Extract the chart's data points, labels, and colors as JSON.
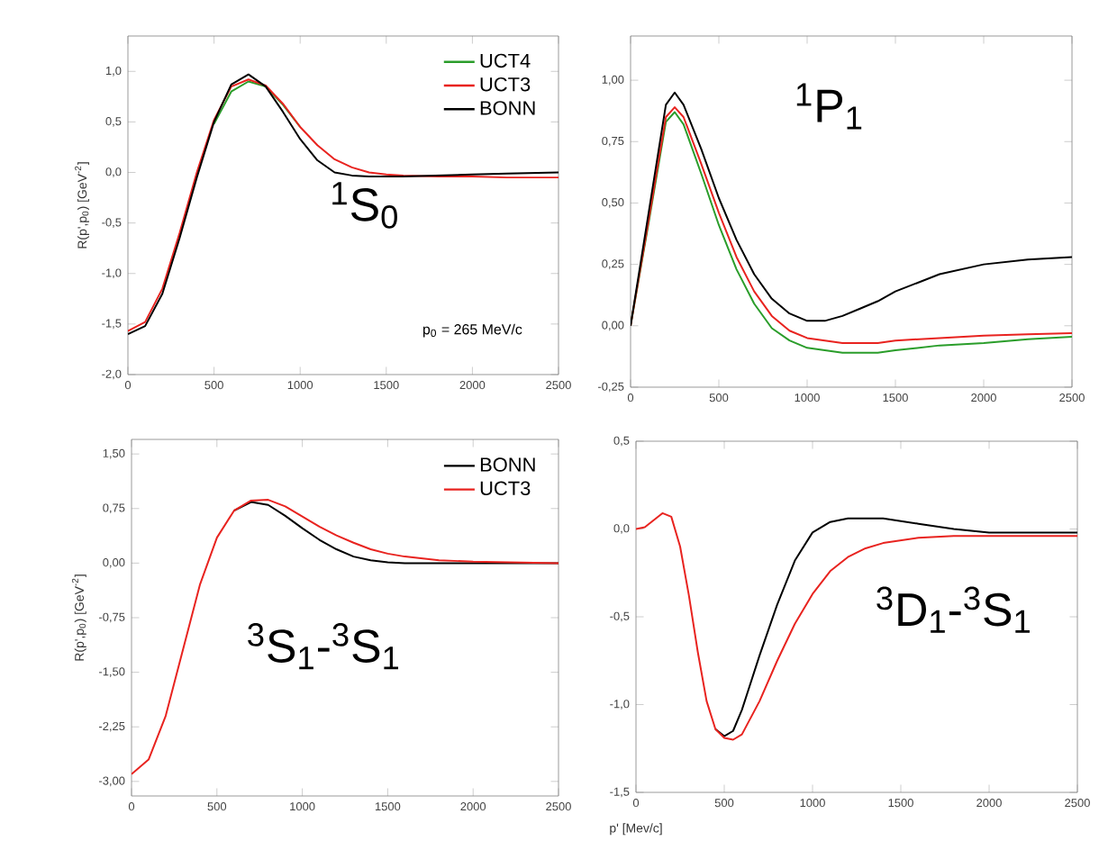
{
  "chart_data": [
    {
      "type": "line",
      "ylabel": "R(p',p$_{0}$) [GeV$^{-2}$]",
      "annotations": [
        "$^{1}$S$_{0}$",
        "p$_{0}$ = 265 MeV/c"
      ],
      "legend": "top right",
      "line_style": "solid",
      "xlim": [
        0,
        2500
      ],
      "xticks": [
        0,
        500,
        1000,
        1500,
        2000,
        2500
      ],
      "ylim": [
        -2.0,
        1.35
      ],
      "yticks": [
        {
          "value": -2.0,
          "label": "-2,0"
        },
        {
          "value": -1.5,
          "label": "-1,5"
        },
        {
          "value": -1.0,
          "label": "-1,0"
        },
        {
          "value": -0.5,
          "label": "-0,5"
        },
        {
          "value": 0.0,
          "label": "0,0"
        },
        {
          "value": 0.5,
          "label": "0,5"
        },
        {
          "value": 1.0,
          "label": "1,0"
        }
      ],
      "x": [
        0,
        100,
        200,
        300,
        400,
        500,
        600,
        700,
        800,
        900,
        1000,
        1100,
        1200,
        1300,
        1400,
        1500,
        1600,
        1800,
        2000,
        2200,
        2500
      ],
      "series": [
        {
          "name": "UCT4",
          "color": "#2a9d2a",
          "values": [
            null,
            null,
            null,
            null,
            null,
            0.48,
            0.8,
            0.9,
            0.85,
            0.67,
            0.45,
            null,
            null,
            null,
            null,
            null,
            null,
            null,
            null,
            null,
            null
          ]
        },
        {
          "name": "UCT3",
          "color": "#e8231f",
          "values": [
            -1.57,
            -1.48,
            -1.15,
            -0.6,
            0.0,
            0.52,
            0.85,
            0.92,
            0.86,
            0.68,
            0.45,
            0.27,
            0.13,
            0.05,
            0.0,
            -0.02,
            -0.03,
            -0.04,
            -0.04,
            -0.05,
            -0.05
          ]
        },
        {
          "name": "BONN",
          "color": "#000000",
          "values": [
            -1.6,
            -1.52,
            -1.2,
            -0.65,
            -0.05,
            0.5,
            0.87,
            0.97,
            0.85,
            0.6,
            0.33,
            0.12,
            0.0,
            -0.03,
            -0.04,
            -0.04,
            -0.04,
            -0.03,
            -0.02,
            -0.01,
            0.0
          ]
        }
      ]
    },
    {
      "type": "line",
      "annotations": [
        "$^{1}$P$_{1}$"
      ],
      "line_style": "solid",
      "xlim": [
        0,
        2500
      ],
      "xticks": [
        0,
        500,
        1000,
        1500,
        2000,
        2500
      ],
      "ylim": [
        -0.25,
        1.18
      ],
      "yticks": [
        {
          "value": -0.25,
          "label": "-0,25"
        },
        {
          "value": 0.0,
          "label": "0,00"
        },
        {
          "value": 0.25,
          "label": "0,25"
        },
        {
          "value": 0.5,
          "label": "0,50"
        },
        {
          "value": 0.75,
          "label": "0,75"
        },
        {
          "value": 1.0,
          "label": "1,00"
        }
      ],
      "x": [
        0,
        100,
        200,
        250,
        300,
        400,
        500,
        600,
        700,
        800,
        900,
        1000,
        1100,
        1200,
        1300,
        1400,
        1500,
        1750,
        2000,
        2250,
        2500
      ],
      "series": [
        {
          "color": "#2a9d2a",
          "values": [
            0.0,
            0.41,
            0.83,
            0.87,
            0.82,
            0.62,
            0.41,
            0.23,
            0.09,
            -0.01,
            -0.06,
            -0.09,
            -0.1,
            -0.11,
            -0.11,
            -0.11,
            -0.1,
            -0.08,
            -0.07,
            -0.055,
            -0.045
          ]
        },
        {
          "color": "#e8231f",
          "values": [
            0.0,
            0.42,
            0.85,
            0.89,
            0.85,
            0.66,
            0.46,
            0.28,
            0.14,
            0.04,
            -0.02,
            -0.05,
            -0.06,
            -0.07,
            -0.07,
            -0.07,
            -0.06,
            -0.05,
            -0.04,
            -0.035,
            -0.03
          ]
        },
        {
          "color": "#000000",
          "values": [
            0.0,
            0.45,
            0.9,
            0.95,
            0.9,
            0.72,
            0.52,
            0.35,
            0.21,
            0.11,
            0.05,
            0.02,
            0.02,
            0.04,
            0.07,
            0.1,
            0.14,
            0.21,
            0.25,
            0.27,
            0.28
          ]
        }
      ]
    },
    {
      "type": "line",
      "ylabel": "R(p',p$_{0}$) [GeV$^{-2}$]",
      "annotations": [
        "$^{3}$S$_{1}$-$^{3}$S$_{1}$"
      ],
      "legend": "top right",
      "line_style": "solid",
      "xlim": [
        0,
        2500
      ],
      "xticks": [
        0,
        500,
        1000,
        1500,
        2000,
        2500
      ],
      "ylim": [
        -3.2,
        1.7
      ],
      "yticks": [
        {
          "value": -3.0,
          "label": "-3,00"
        },
        {
          "value": -2.25,
          "label": "-2,25"
        },
        {
          "value": -1.5,
          "label": "-1,50"
        },
        {
          "value": -0.75,
          "label": "-0,75"
        },
        {
          "value": 0.0,
          "label": "0,00"
        },
        {
          "value": 0.75,
          "label": "0,75"
        },
        {
          "value": 1.5,
          "label": "1,50"
        }
      ],
      "x": [
        0,
        100,
        200,
        300,
        400,
        500,
        600,
        700,
        800,
        900,
        1000,
        1100,
        1200,
        1300,
        1400,
        1500,
        1600,
        1800,
        2000,
        2500
      ],
      "series": [
        {
          "name": "BONN",
          "color": "#000000",
          "values": [
            null,
            null,
            null,
            null,
            null,
            null,
            0.72,
            0.84,
            0.8,
            0.65,
            0.48,
            0.32,
            0.19,
            0.09,
            0.04,
            0.01,
            0.0,
            0.0,
            0.0,
            0.0
          ]
        },
        {
          "name": "UCT3",
          "color": "#e8231f",
          "values": [
            -2.9,
            -2.7,
            -2.1,
            -1.2,
            -0.3,
            0.35,
            0.72,
            0.86,
            0.87,
            0.78,
            0.64,
            0.5,
            0.38,
            0.28,
            0.19,
            0.13,
            0.09,
            0.04,
            0.02,
            0.0
          ]
        }
      ]
    },
    {
      "type": "line",
      "xlabel": "p' [Mev/c]",
      "annotations": [
        "$^{3}$D$_{1}$-$^{3}$S$_{1}$"
      ],
      "line_style": "solid",
      "xlim": [
        0,
        2500
      ],
      "xticks": [
        0,
        500,
        1000,
        1500,
        2000,
        2500
      ],
      "ylim": [
        -1.5,
        0.5
      ],
      "yticks": [
        {
          "value": -1.5,
          "label": "-1,5"
        },
        {
          "value": -1.0,
          "label": "-1,0"
        },
        {
          "value": -0.5,
          "label": "-0,5"
        },
        {
          "value": 0.0,
          "label": "0,0"
        },
        {
          "value": 0.5,
          "label": "0,5"
        }
      ],
      "x": [
        0,
        50,
        100,
        150,
        200,
        250,
        300,
        350,
        400,
        450,
        500,
        550,
        600,
        700,
        800,
        900,
        1000,
        1100,
        1200,
        1300,
        1400,
        1600,
        1800,
        2000,
        2500
      ],
      "series": [
        {
          "color": "#000000",
          "values": [
            null,
            null,
            null,
            null,
            null,
            null,
            null,
            null,
            null,
            -1.14,
            -1.18,
            -1.15,
            -1.03,
            -0.72,
            -0.43,
            -0.18,
            -0.02,
            0.04,
            0.06,
            0.06,
            0.06,
            0.03,
            0.0,
            -0.02,
            -0.02
          ]
        },
        {
          "color": "#e8231f",
          "values": [
            0.0,
            0.01,
            0.05,
            0.09,
            0.07,
            -0.1,
            -0.38,
            -0.7,
            -0.98,
            -1.14,
            -1.19,
            -1.2,
            -1.17,
            -0.98,
            -0.75,
            -0.54,
            -0.37,
            -0.24,
            -0.16,
            -0.11,
            -0.08,
            -0.05,
            -0.04,
            -0.04,
            -0.04
          ]
        }
      ]
    }
  ]
}
